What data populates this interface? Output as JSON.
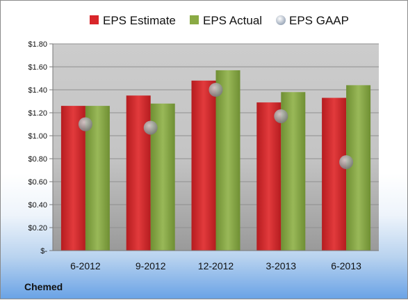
{
  "company": "Chemed",
  "chart_data": {
    "type": "bar",
    "categories": [
      "6-2012",
      "9-2012",
      "12-2012",
      "3-2013",
      "6-2013"
    ],
    "series": [
      {
        "name": "EPS Estimate",
        "type": "bar",
        "color": "#d9262a",
        "values": [
          1.26,
          1.35,
          1.48,
          1.29,
          1.33
        ]
      },
      {
        "name": "EPS Actual",
        "type": "bar",
        "color": "#8aaa44",
        "values": [
          1.26,
          1.28,
          1.57,
          1.38,
          1.44
        ]
      },
      {
        "name": "EPS GAAP",
        "type": "scatter",
        "color": "#a0a0a0",
        "values": [
          1.1,
          1.07,
          1.4,
          1.17,
          0.77
        ]
      }
    ],
    "ylim": [
      0,
      1.8
    ],
    "yticks": [
      0,
      0.2,
      0.4,
      0.6,
      0.8,
      1.0,
      1.2,
      1.4,
      1.6,
      1.8
    ],
    "ytick_labels": [
      "$-",
      "$0.20",
      "$0.40",
      "$0.60",
      "$0.80",
      "$1.00",
      "$1.20",
      "$1.40",
      "$1.60",
      "$1.80"
    ],
    "grid": true,
    "legend_position": "top-center",
    "plot_background": "#c8c8c8"
  }
}
